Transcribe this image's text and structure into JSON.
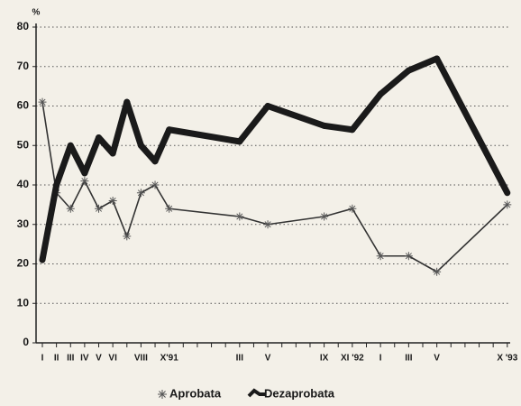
{
  "chart_data": {
    "type": "line",
    "y_label": "%",
    "categories": [
      "I",
      "II",
      "III",
      "IV",
      "V",
      "VI",
      null,
      "VIII",
      null,
      "X'91",
      null,
      null,
      null,
      null,
      "III",
      null,
      "V",
      null,
      null,
      null,
      "IX",
      null,
      "XI '92",
      null,
      "I",
      null,
      "III",
      null,
      "V",
      null,
      null,
      null,
      null,
      "X '93"
    ],
    "series": [
      {
        "name": "Aprobata",
        "color": "#333333",
        "values": [
          61,
          38,
          34,
          41,
          34,
          36,
          27,
          38,
          40,
          34,
          null,
          null,
          null,
          null,
          32,
          null,
          30,
          null,
          null,
          null,
          32,
          null,
          34,
          null,
          22,
          null,
          22,
          null,
          18,
          null,
          null,
          null,
          null,
          35
        ]
      },
      {
        "name": "Dezaprobata",
        "color": "#1a1a1a",
        "values": [
          21,
          40,
          50,
          43,
          52,
          48,
          61,
          50,
          46,
          54,
          null,
          null,
          null,
          null,
          51,
          null,
          60,
          null,
          null,
          null,
          55,
          null,
          54,
          null,
          63,
          null,
          69,
          null,
          72,
          null,
          null,
          null,
          null,
          38
        ]
      }
    ],
    "ylim": [
      0,
      80
    ],
    "yticks": [
      0,
      10,
      20,
      30,
      40,
      50,
      60,
      70,
      80
    ],
    "grid": true
  }
}
